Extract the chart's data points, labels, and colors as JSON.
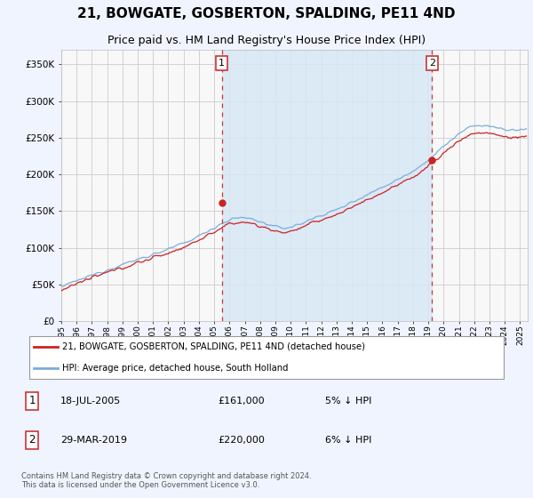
{
  "title": "21, BOWGATE, GOSBERTON, SPALDING, PE11 4ND",
  "subtitle": "Price paid vs. HM Land Registry's House Price Index (HPI)",
  "title_fontsize": 11,
  "subtitle_fontsize": 9,
  "ylim": [
    0,
    370000
  ],
  "yticks": [
    0,
    50000,
    100000,
    150000,
    200000,
    250000,
    300000,
    350000
  ],
  "ytick_labels": [
    "£0",
    "£50K",
    "£100K",
    "£150K",
    "£200K",
    "£250K",
    "£300K",
    "£350K"
  ],
  "year_start": 1995,
  "year_end": 2025,
  "background_color": "#f0f4ff",
  "plot_bg_color": "#f8f8f8",
  "grid_color": "#cccccc",
  "hpi_color": "#7aaddd",
  "price_color": "#cc2222",
  "span_color": "#d8e8f5",
  "marker1_value": 161000,
  "marker1_label": "1",
  "marker1_year": 2005.54,
  "marker2_value": 220000,
  "marker2_label": "2",
  "marker2_year": 2019.25,
  "vline1_color": "#cc3333",
  "vline2_color": "#cc3333",
  "legend_label_price": "21, BOWGATE, GOSBERTON, SPALDING, PE11 4ND (detached house)",
  "legend_label_hpi": "HPI: Average price, detached house, South Holland",
  "footnote": "Contains HM Land Registry data © Crown copyright and database right 2024.\nThis data is licensed under the Open Government Licence v3.0.",
  "table_rows": [
    [
      "1",
      "18-JUL-2005",
      "£161,000",
      "5% ↓ HPI"
    ],
    [
      "2",
      "29-MAR-2019",
      "£220,000",
      "6% ↓ HPI"
    ]
  ]
}
